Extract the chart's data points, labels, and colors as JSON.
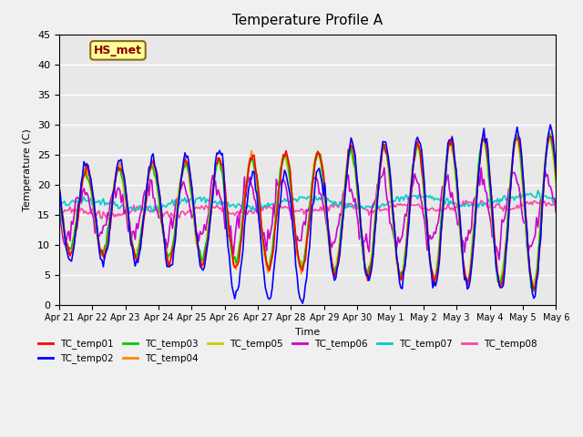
{
  "title": "Temperature Profile A",
  "xlabel": "Time",
  "ylabel": "Temperature (C)",
  "ylim": [
    0,
    45
  ],
  "annotation_text": "HS_met",
  "annotation_color": "#8B0000",
  "annotation_bg": "#FFFF99",
  "annotation_border": "#8B6914",
  "series": {
    "TC_temp01": {
      "color": "#FF0000",
      "lw": 1.2
    },
    "TC_temp02": {
      "color": "#0000FF",
      "lw": 1.2
    },
    "TC_temp03": {
      "color": "#00CC00",
      "lw": 1.2
    },
    "TC_temp04": {
      "color": "#FF8800",
      "lw": 1.2
    },
    "TC_temp05": {
      "color": "#CCCC00",
      "lw": 1.2
    },
    "TC_temp06": {
      "color": "#CC00CC",
      "lw": 1.2
    },
    "TC_temp07": {
      "color": "#00CCCC",
      "lw": 1.2
    },
    "TC_temp08": {
      "color": "#FF44AA",
      "lw": 1.2
    }
  },
  "xtick_labels": [
    "Apr 21",
    "Apr 22",
    "Apr 23",
    "Apr 24",
    "Apr 25",
    "Apr 26",
    "Apr 27",
    "Apr 28",
    "Apr 29",
    "Apr 30",
    "May 1",
    "May 2",
    "May 3",
    "May 4",
    "May 5",
    "May 6"
  ],
  "ytick_labels": [
    "0",
    "5",
    "10",
    "15",
    "20",
    "25",
    "30",
    "35",
    "40",
    "45"
  ],
  "yticks": [
    0,
    5,
    10,
    15,
    20,
    25,
    30,
    35,
    40,
    45
  ]
}
